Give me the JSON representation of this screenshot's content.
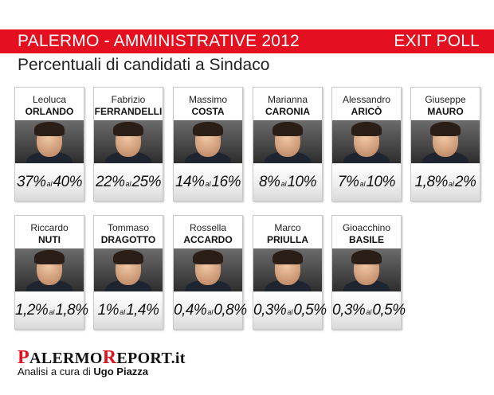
{
  "header": {
    "title_left": "PALERMO - AMMINISTRATIVE 2012",
    "title_right": "EXIT POLL",
    "subtitle": "Percentuali di candidati a Sindaco"
  },
  "candidates": [
    {
      "first": "Leoluca",
      "last": "ORLANDO",
      "from": "37%",
      "to": "40%"
    },
    {
      "first": "Fabrizio",
      "last": "FERRANDELLI",
      "from": "22%",
      "to": "25%"
    },
    {
      "first": "Massimo",
      "last": "COSTA",
      "from": "14%",
      "to": "16%"
    },
    {
      "first": "Marianna",
      "last": "CARONIA",
      "from": "8%",
      "to": "10%"
    },
    {
      "first": "Alessandro",
      "last": "ARICÒ",
      "from": "7%",
      "to": "10%"
    },
    {
      "first": "Giuseppe",
      "last": "MAURO",
      "from": "1,8%",
      "to": "2%"
    },
    {
      "first": "Riccardo",
      "last": "NUTI",
      "from": "1,2%",
      "to": "1,8%"
    },
    {
      "first": "Tommaso",
      "last": "DRAGOTTO",
      "from": "1%",
      "to": "1,4%"
    },
    {
      "first": "Rossella",
      "last": "ACCARDO",
      "from": "0,4%",
      "to": "0,8%"
    },
    {
      "first": "Marco",
      "last": "PRIULLA",
      "from": "0,3%",
      "to": "0,5%"
    },
    {
      "first": "Gioacchino",
      "last": "BASILE",
      "from": "0,3%",
      "to": "0,5%"
    }
  ],
  "range_connector": "al",
  "footer": {
    "logo_letter_1": "P",
    "logo_part_1": "ALERMO",
    "logo_letter_2": "R",
    "logo_part_2": "EPORT.it",
    "credit_prefix": "Analisi a cura di",
    "credit_author": "Ugo Piazza"
  },
  "colors": {
    "accent": "#e4101f",
    "text": "#111111"
  },
  "icons": [
    "candidate-photo"
  ]
}
